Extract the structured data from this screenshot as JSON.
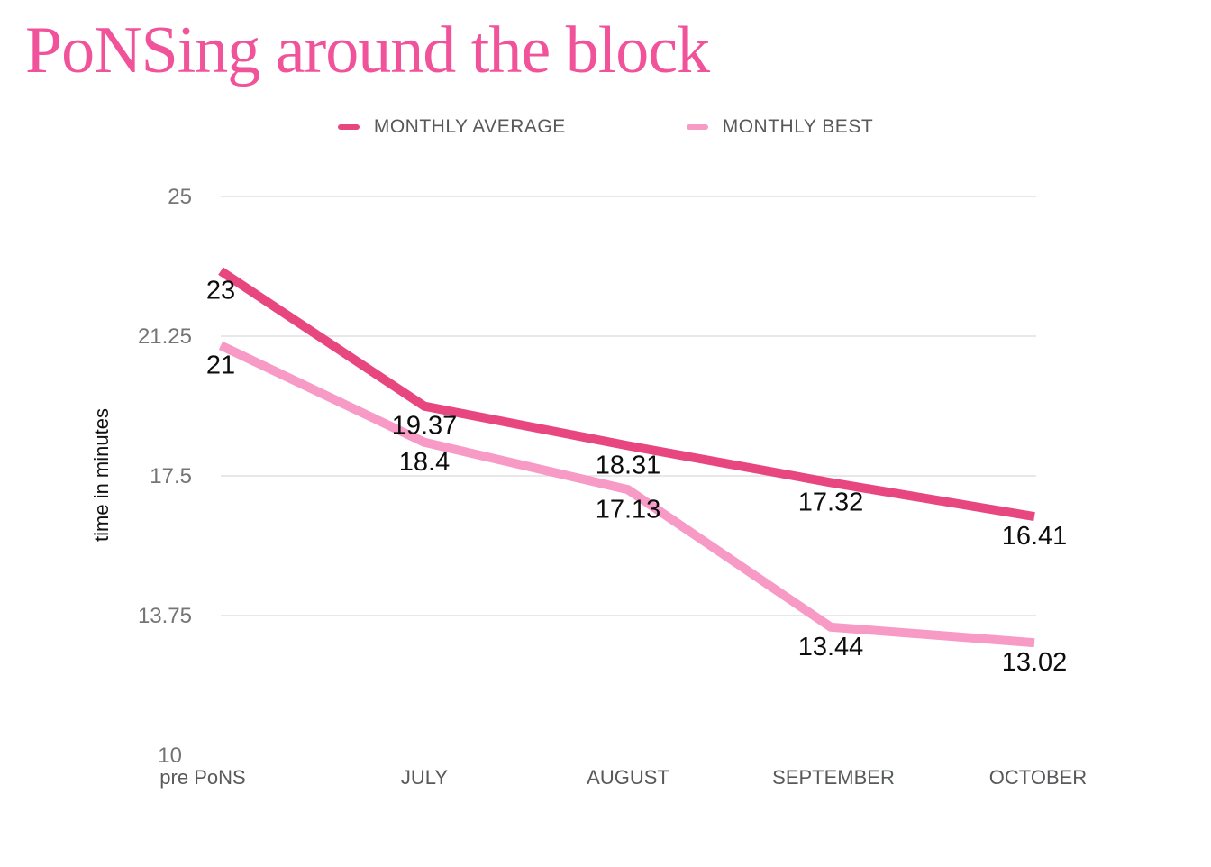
{
  "title": "PoNSing around the block",
  "colors": {
    "title": "#F1539A",
    "grid_line": "#D9D9D9",
    "tick_label": "#757575",
    "axis_label": "#58595B",
    "data_label": "#0D0D0D",
    "legend_text": "#58595B",
    "background": "#FFFFFF"
  },
  "chart_data": {
    "type": "line",
    "categories": [
      "pre PoNS",
      "JULY",
      "AUGUST",
      "SEPTEMBER",
      "OCTOBER"
    ],
    "series": [
      {
        "name": "MONTHLY AVERAGE",
        "color": "#E8467F",
        "values": [
          23,
          19.37,
          18.31,
          17.32,
          16.41
        ],
        "labels": [
          "23",
          "19.37",
          "18.31",
          "17.32",
          "16.41"
        ]
      },
      {
        "name": "MONTHLY BEST",
        "color": "#F79AC6",
        "values": [
          21,
          18.4,
          17.13,
          13.44,
          13.02
        ],
        "labels": [
          "21",
          "18.4",
          "17.13",
          "13.44",
          "13.02"
        ]
      }
    ],
    "xlabel": "",
    "ylabel": "time in minutes",
    "ylim": [
      10,
      25
    ],
    "yticks": [
      {
        "label": "25",
        "value": 25,
        "grid": true
      },
      {
        "label": "21.25",
        "value": 21.25,
        "grid": true
      },
      {
        "label": "17.5",
        "value": 17.5,
        "grid": true
      },
      {
        "label": "13.75",
        "value": 13.75,
        "grid": true
      },
      {
        "label": "10",
        "value": 10,
        "grid": false
      }
    ],
    "legend_position": "top",
    "grid": "horizontal"
  }
}
